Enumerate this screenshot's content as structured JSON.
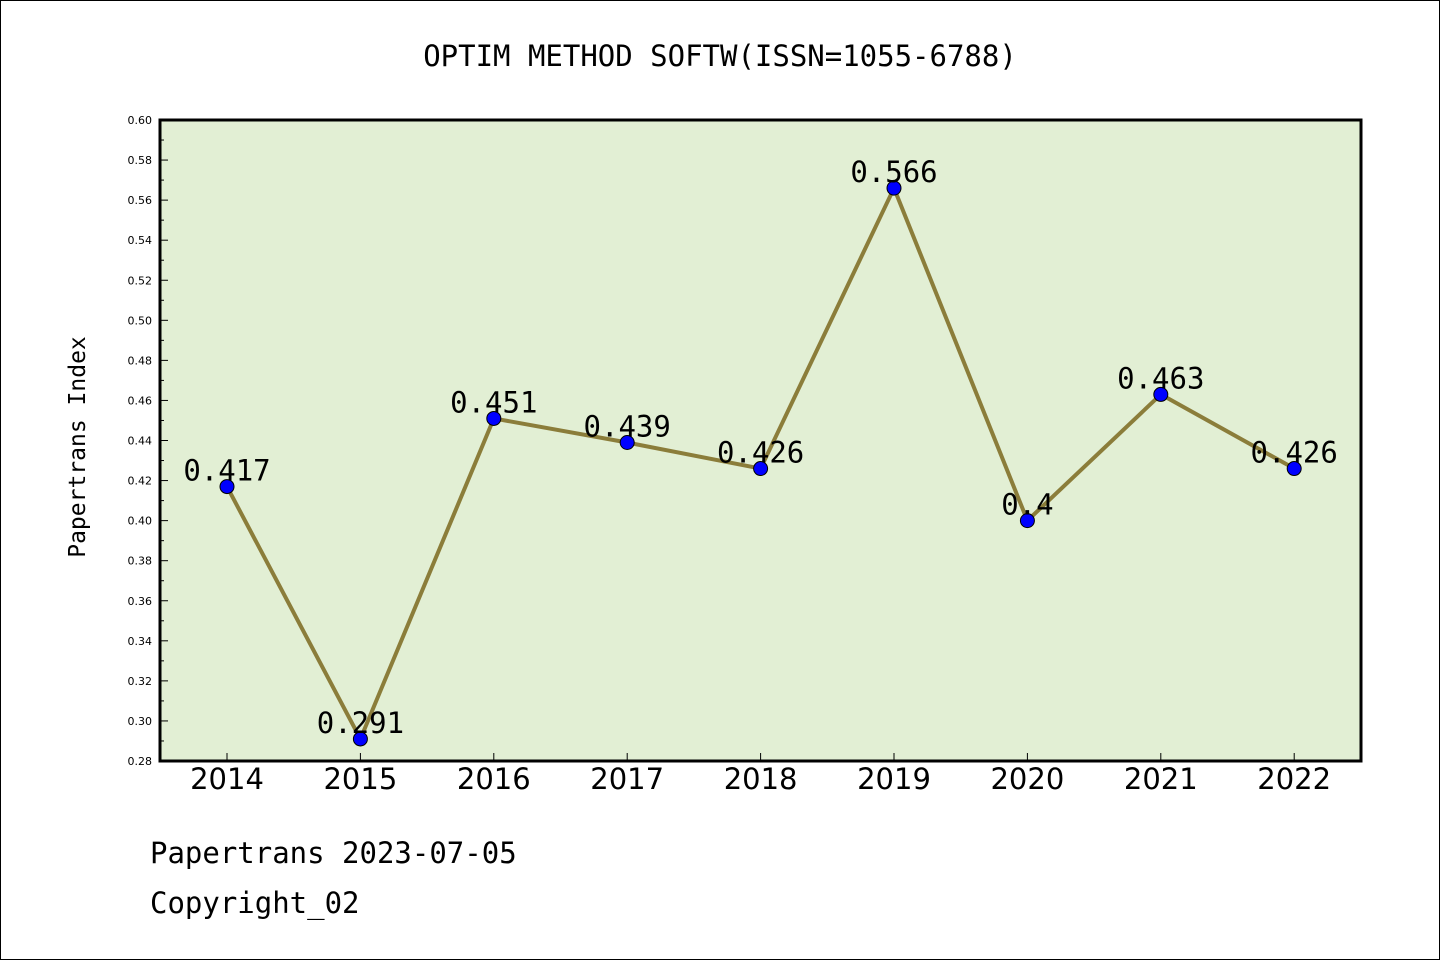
{
  "chart_data": {
    "type": "line",
    "title": "OPTIM METHOD SOFTW(ISSN=1055-6788)",
    "xlabel": "",
    "ylabel": "Papertrans Index",
    "categories": [
      "2014",
      "2015",
      "2016",
      "2017",
      "2018",
      "2019",
      "2020",
      "2021",
      "2022"
    ],
    "series": [
      {
        "values": [
          0.417,
          0.291,
          0.451,
          0.439,
          0.426,
          0.566,
          0.4,
          0.463,
          0.426
        ],
        "labels": [
          "0.417",
          "0.291",
          "0.451",
          "0.439",
          "0.426",
          "0.566",
          "0.4",
          "0.463",
          "0.426"
        ]
      }
    ],
    "ylim": [
      0.28,
      0.6
    ],
    "yticks": [
      "0.28",
      "0.30",
      "0.32",
      "0.34",
      "0.36",
      "0.38",
      "0.40",
      "0.42",
      "0.44",
      "0.46",
      "0.48",
      "0.50",
      "0.52",
      "0.54",
      "0.56",
      "0.58",
      "0.60"
    ],
    "grid": false,
    "legend": "none",
    "colors": {
      "plot_background": "#e2efd4",
      "line": "#8b7d3a",
      "marker": "#0000ff",
      "axis": "#000000"
    }
  },
  "footer": {
    "line1": "Papertrans 2023-07-05",
    "line2": "Copyright_02"
  }
}
